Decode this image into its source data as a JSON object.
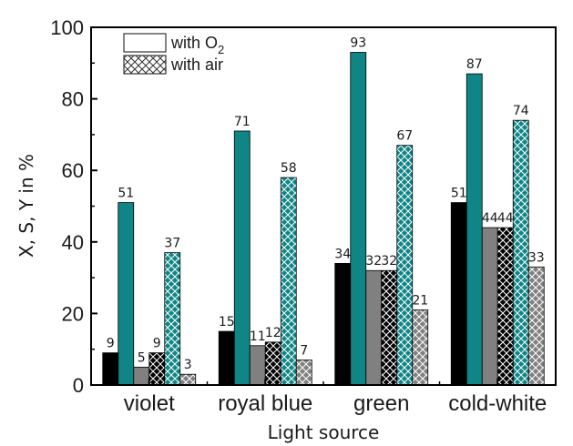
{
  "chart_data": {
    "type": "bar",
    "title": "",
    "xlabel": "Light source",
    "ylabel": "X, S, Y in %",
    "ylim": [
      0,
      100
    ],
    "yticks": [
      "0",
      "20",
      "40",
      "60",
      "80",
      "100"
    ],
    "categories": [
      "violet",
      "royal blue",
      "green",
      "cold-white"
    ],
    "series": [
      {
        "fill": "#000000",
        "pattern": "solid",
        "values": [
          9,
          15,
          34,
          51
        ]
      },
      {
        "fill": "#0f8585",
        "pattern": "solid",
        "values": [
          51,
          71,
          93,
          87
        ]
      },
      {
        "fill": "#808080",
        "pattern": "solid",
        "values": [
          5,
          11,
          32,
          44
        ]
      },
      {
        "fill": "#000000",
        "pattern": "crosshatch",
        "values": [
          9,
          12,
          32,
          44
        ]
      },
      {
        "fill": "#0f8585",
        "pattern": "crosshatch",
        "values": [
          37,
          58,
          67,
          74
        ]
      },
      {
        "fill": "#808080",
        "pattern": "crosshatch",
        "values": [
          3,
          7,
          21,
          33
        ]
      }
    ],
    "data_labels": [
      [
        "9",
        "51",
        "5",
        "9",
        "37",
        "3"
      ],
      [
        "15",
        "71",
        "11",
        "12",
        "58",
        "7"
      ],
      [
        "34",
        "93",
        "32",
        "32",
        "67",
        "21"
      ],
      [
        "51",
        "87",
        "44",
        "44",
        "74",
        "33"
      ]
    ],
    "legend": {
      "position": "top-left",
      "entries": [
        {
          "label_main": "with O",
          "label_sub": "2",
          "pattern": "solid"
        },
        {
          "label_main": "with air",
          "label_sub": "",
          "pattern": "crosshatch"
        }
      ]
    }
  }
}
